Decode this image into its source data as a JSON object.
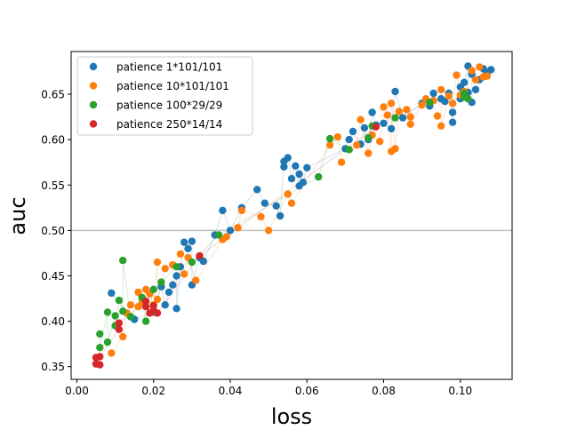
{
  "chart_data": {
    "type": "scatter",
    "xlabel": "loss",
    "ylabel": "auc",
    "xlim": [
      -0.0015,
      0.1135
    ],
    "ylim": [
      0.336,
      0.697
    ],
    "x_ticks": [
      0.0,
      0.02,
      0.04,
      0.06,
      0.08,
      0.1
    ],
    "x_tick_labels": [
      "0.00",
      "0.02",
      "0.04",
      "0.06",
      "0.08",
      "0.10"
    ],
    "y_ticks": [
      0.35,
      0.4,
      0.45,
      0.5,
      0.55,
      0.6,
      0.65
    ],
    "y_tick_labels": [
      "0.35",
      "0.40",
      "0.45",
      "0.50",
      "0.55",
      "0.60",
      "0.65"
    ],
    "reference_line": {
      "axis": "y",
      "value": 0.5,
      "color": "#bfbfbf"
    },
    "grid": false,
    "legend_position": "top-left",
    "series": [
      {
        "name": "patience 1*101/101",
        "color": "#1f77b4",
        "points": [
          [
            0.009,
            0.431
          ],
          [
            0.015,
            0.402
          ],
          [
            0.02,
            0.41
          ],
          [
            0.022,
            0.438
          ],
          [
            0.023,
            0.418
          ],
          [
            0.024,
            0.432
          ],
          [
            0.025,
            0.44
          ],
          [
            0.026,
            0.45
          ],
          [
            0.026,
            0.414
          ],
          [
            0.027,
            0.46
          ],
          [
            0.028,
            0.487
          ],
          [
            0.029,
            0.48
          ],
          [
            0.03,
            0.488
          ],
          [
            0.03,
            0.44
          ],
          [
            0.032,
            0.47
          ],
          [
            0.033,
            0.466
          ],
          [
            0.036,
            0.495
          ],
          [
            0.038,
            0.522
          ],
          [
            0.04,
            0.5
          ],
          [
            0.043,
            0.525
          ],
          [
            0.047,
            0.545
          ],
          [
            0.049,
            0.53
          ],
          [
            0.052,
            0.527
          ],
          [
            0.053,
            0.516
          ],
          [
            0.054,
            0.576
          ],
          [
            0.054,
            0.57
          ],
          [
            0.055,
            0.58
          ],
          [
            0.056,
            0.557
          ],
          [
            0.057,
            0.571
          ],
          [
            0.058,
            0.549
          ],
          [
            0.058,
            0.562
          ],
          [
            0.059,
            0.553
          ],
          [
            0.06,
            0.569
          ],
          [
            0.07,
            0.59
          ],
          [
            0.071,
            0.6
          ],
          [
            0.072,
            0.609
          ],
          [
            0.074,
            0.595
          ],
          [
            0.075,
            0.613
          ],
          [
            0.076,
            0.6
          ],
          [
            0.077,
            0.63
          ],
          [
            0.078,
            0.616
          ],
          [
            0.08,
            0.618
          ],
          [
            0.082,
            0.612
          ],
          [
            0.083,
            0.653
          ],
          [
            0.085,
            0.624
          ],
          [
            0.09,
            0.64
          ],
          [
            0.092,
            0.637
          ],
          [
            0.093,
            0.651
          ],
          [
            0.095,
            0.645
          ],
          [
            0.096,
            0.642
          ],
          [
            0.097,
            0.651
          ],
          [
            0.098,
            0.619
          ],
          [
            0.098,
            0.63
          ],
          [
            0.1,
            0.658
          ],
          [
            0.1,
            0.645
          ],
          [
            0.101,
            0.663
          ],
          [
            0.102,
            0.681
          ],
          [
            0.102,
            0.652
          ],
          [
            0.103,
            0.641
          ],
          [
            0.103,
            0.672
          ],
          [
            0.104,
            0.655
          ],
          [
            0.105,
            0.666
          ],
          [
            0.106,
            0.678
          ],
          [
            0.107,
            0.674
          ],
          [
            0.108,
            0.677
          ]
        ]
      },
      {
        "name": "patience 10*101/101",
        "color": "#ff7f0e",
        "points": [
          [
            0.009,
            0.365
          ],
          [
            0.012,
            0.383
          ],
          [
            0.013,
            0.409
          ],
          [
            0.014,
            0.418
          ],
          [
            0.016,
            0.432
          ],
          [
            0.016,
            0.416
          ],
          [
            0.017,
            0.42
          ],
          [
            0.018,
            0.435
          ],
          [
            0.019,
            0.43
          ],
          [
            0.02,
            0.418
          ],
          [
            0.021,
            0.465
          ],
          [
            0.021,
            0.424
          ],
          [
            0.023,
            0.458
          ],
          [
            0.025,
            0.462
          ],
          [
            0.027,
            0.474
          ],
          [
            0.028,
            0.452
          ],
          [
            0.029,
            0.47
          ],
          [
            0.031,
            0.445
          ],
          [
            0.038,
            0.49
          ],
          [
            0.039,
            0.493
          ],
          [
            0.042,
            0.503
          ],
          [
            0.043,
            0.522
          ],
          [
            0.048,
            0.515
          ],
          [
            0.05,
            0.5
          ],
          [
            0.055,
            0.54
          ],
          [
            0.056,
            0.53
          ],
          [
            0.066,
            0.594
          ],
          [
            0.068,
            0.603
          ],
          [
            0.069,
            0.575
          ],
          [
            0.073,
            0.594
          ],
          [
            0.074,
            0.622
          ],
          [
            0.076,
            0.585
          ],
          [
            0.077,
            0.605
          ],
          [
            0.079,
            0.598
          ],
          [
            0.08,
            0.636
          ],
          [
            0.081,
            0.627
          ],
          [
            0.082,
            0.587
          ],
          [
            0.082,
            0.64
          ],
          [
            0.083,
            0.59
          ],
          [
            0.084,
            0.631
          ],
          [
            0.086,
            0.633
          ],
          [
            0.087,
            0.625
          ],
          [
            0.087,
            0.617
          ],
          [
            0.09,
            0.638
          ],
          [
            0.091,
            0.645
          ],
          [
            0.093,
            0.643
          ],
          [
            0.094,
            0.626
          ],
          [
            0.095,
            0.655
          ],
          [
            0.095,
            0.615
          ],
          [
            0.097,
            0.648
          ],
          [
            0.098,
            0.64
          ],
          [
            0.099,
            0.671
          ],
          [
            0.1,
            0.649
          ],
          [
            0.101,
            0.653
          ],
          [
            0.103,
            0.676
          ],
          [
            0.104,
            0.666
          ],
          [
            0.105,
            0.68
          ],
          [
            0.106,
            0.669
          ],
          [
            0.107,
            0.67
          ]
        ]
      },
      {
        "name": "patience 100*29/29",
        "color": "#2ca02c",
        "points": [
          [
            0.006,
            0.386
          ],
          [
            0.006,
            0.371
          ],
          [
            0.008,
            0.41
          ],
          [
            0.008,
            0.377
          ],
          [
            0.01,
            0.406
          ],
          [
            0.01,
            0.395
          ],
          [
            0.011,
            0.423
          ],
          [
            0.012,
            0.411
          ],
          [
            0.012,
            0.467
          ],
          [
            0.014,
            0.405
          ],
          [
            0.017,
            0.426
          ],
          [
            0.018,
            0.4
          ],
          [
            0.02,
            0.435
          ],
          [
            0.022,
            0.443
          ],
          [
            0.026,
            0.46
          ],
          [
            0.03,
            0.465
          ],
          [
            0.037,
            0.495
          ],
          [
            0.063,
            0.559
          ],
          [
            0.066,
            0.601
          ],
          [
            0.071,
            0.589
          ],
          [
            0.076,
            0.602
          ],
          [
            0.077,
            0.615
          ],
          [
            0.083,
            0.624
          ],
          [
            0.092,
            0.641
          ],
          [
            0.101,
            0.647
          ],
          [
            0.101,
            0.651
          ],
          [
            0.102,
            0.645
          ]
        ]
      },
      {
        "name": "patience 250*14/14",
        "color": "#d62728",
        "points": [
          [
            0.005,
            0.353
          ],
          [
            0.005,
            0.36
          ],
          [
            0.006,
            0.352
          ],
          [
            0.006,
            0.361
          ],
          [
            0.011,
            0.391
          ],
          [
            0.011,
            0.398
          ],
          [
            0.018,
            0.422
          ],
          [
            0.018,
            0.416
          ],
          [
            0.019,
            0.409
          ],
          [
            0.02,
            0.417
          ],
          [
            0.02,
            0.412
          ],
          [
            0.021,
            0.409
          ],
          [
            0.032,
            0.472
          ],
          [
            0.078,
            0.614
          ]
        ]
      }
    ]
  }
}
